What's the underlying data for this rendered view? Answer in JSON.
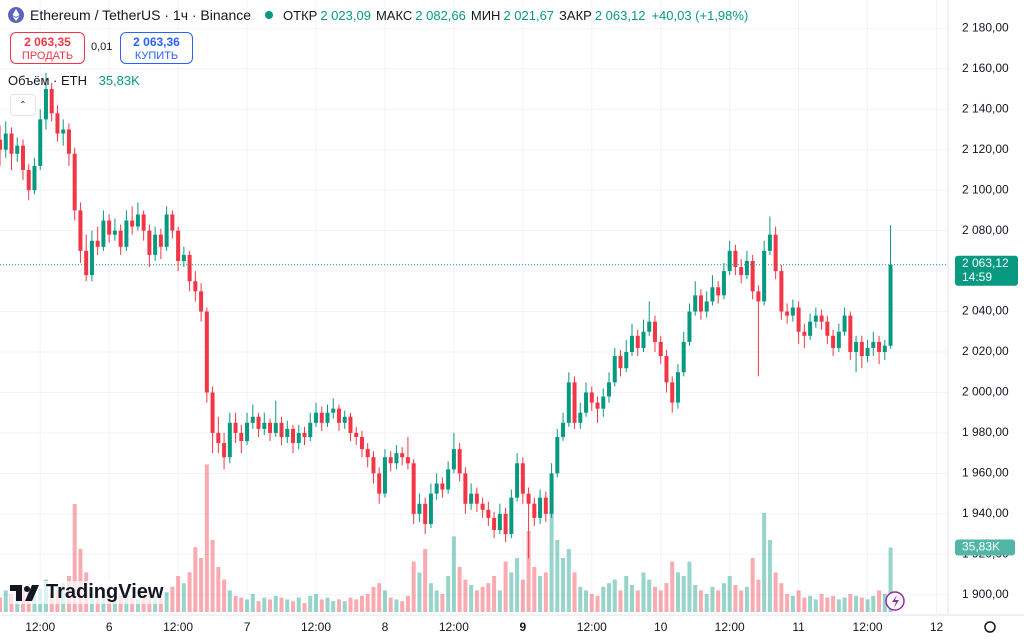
{
  "chart_data": {
    "type": "candlestick",
    "title": "Ethereum / TetherUS · 1ч · Binance",
    "ohlc_header": [
      {
        "label": "ОТКР",
        "value": "2 023,09"
      },
      {
        "label": "МАКС",
        "value": "2 082,66"
      },
      {
        "label": "МИН",
        "value": "2 021,67"
      },
      {
        "label": "ЗАКР",
        "value": "2 063,12"
      }
    ],
    "change": "+40,03 (+1,98%)",
    "sell": {
      "price": "2 063,35",
      "label": "ПРОДАТЬ"
    },
    "spread": "0,01",
    "buy": {
      "price": "2 063,36",
      "label": "КУПИТЬ"
    },
    "volume_title": "Объём · ETH",
    "volume_last_label": "35,83K",
    "last_price_label": "2 063,12",
    "countdown": "14:59",
    "logo": "TradingView",
    "up_color": "#089981",
    "down_color": "#f23645",
    "grid": true,
    "ylim": [
      1890,
      2194
    ],
    "yticks": [
      {
        "value": 1900,
        "label": "1 900,00"
      },
      {
        "value": 1920,
        "label": "1 920,00"
      },
      {
        "value": 1940,
        "label": "1 940,00"
      },
      {
        "value": 1960,
        "label": "1 960,00"
      },
      {
        "value": 1980,
        "label": "1 980,00"
      },
      {
        "value": 2000,
        "label": "2 000,00"
      },
      {
        "value": 2020,
        "label": "2 020,00"
      },
      {
        "value": 2040,
        "label": "2 040,00"
      },
      {
        "value": 2060,
        "label": "2 060,00"
      },
      {
        "value": 2080,
        "label": "2 080,00"
      },
      {
        "value": 2100,
        "label": "2 100,00"
      },
      {
        "value": 2120,
        "label": "2 120,00"
      },
      {
        "value": 2140,
        "label": "2 140,00"
      },
      {
        "value": 2160,
        "label": "2 160,00"
      },
      {
        "value": 2180,
        "label": "2 180,00"
      }
    ],
    "xlim": [
      0,
      165
    ],
    "xticks": [
      {
        "value": 7,
        "label": "12:00"
      },
      {
        "value": 19,
        "label": "6"
      },
      {
        "value": 31,
        "label": "12:00"
      },
      {
        "value": 43,
        "label": "7"
      },
      {
        "value": 55,
        "label": "12:00"
      },
      {
        "value": 67,
        "label": "8"
      },
      {
        "value": 79,
        "label": "12:00"
      },
      {
        "value": 91,
        "label": "9"
      },
      {
        "value": 103,
        "label": "12:00"
      },
      {
        "value": 115,
        "label": "10"
      },
      {
        "value": 127,
        "label": "12:00"
      },
      {
        "value": 139,
        "label": "11"
      },
      {
        "value": 151,
        "label": "12:00"
      },
      {
        "value": 163,
        "label": "12"
      }
    ],
    "candles": [
      [
        2125,
        2132,
        2112,
        2120
      ],
      [
        2120,
        2134,
        2116,
        2128
      ],
      [
        2128,
        2131,
        2110,
        2118
      ],
      [
        2118,
        2126,
        2114,
        2122
      ],
      [
        2122,
        2125,
        2105,
        2110
      ],
      [
        2110,
        2113,
        2095,
        2100
      ],
      [
        2100,
        2116,
        2098,
        2112
      ],
      [
        2112,
        2140,
        2110,
        2135
      ],
      [
        2135,
        2158,
        2130,
        2150
      ],
      [
        2150,
        2153,
        2134,
        2138
      ],
      [
        2138,
        2142,
        2124,
        2128
      ],
      [
        2128,
        2135,
        2122,
        2130
      ],
      [
        2130,
        2133,
        2112,
        2118
      ],
      [
        2118,
        2121,
        2085,
        2090
      ],
      [
        2090,
        2094,
        2064,
        2070
      ],
      [
        2070,
        2078,
        2055,
        2058
      ],
      [
        2058,
        2080,
        2055,
        2075
      ],
      [
        2075,
        2082,
        2068,
        2072
      ],
      [
        2072,
        2090,
        2070,
        2085
      ],
      [
        2085,
        2088,
        2074,
        2078
      ],
      [
        2078,
        2086,
        2075,
        2080
      ],
      [
        2080,
        2083,
        2068,
        2072
      ],
      [
        2072,
        2090,
        2070,
        2085
      ],
      [
        2085,
        2092,
        2078,
        2082
      ],
      [
        2082,
        2094,
        2080,
        2088
      ],
      [
        2088,
        2090,
        2075,
        2080
      ],
      [
        2080,
        2083,
        2062,
        2068
      ],
      [
        2068,
        2082,
        2065,
        2078
      ],
      [
        2078,
        2081,
        2066,
        2072
      ],
      [
        2072,
        2092,
        2070,
        2088
      ],
      [
        2088,
        2090,
        2076,
        2080
      ],
      [
        2080,
        2082,
        2060,
        2065
      ],
      [
        2065,
        2072,
        2062,
        2068
      ],
      [
        2068,
        2070,
        2050,
        2055
      ],
      [
        2055,
        2060,
        2045,
        2050
      ],
      [
        2050,
        2054,
        2035,
        2040
      ],
      [
        2040,
        2042,
        1995,
        2000
      ],
      [
        2000,
        2003,
        1970,
        1980
      ],
      [
        1980,
        1988,
        1970,
        1975
      ],
      [
        1975,
        1980,
        1962,
        1968
      ],
      [
        1968,
        1990,
        1965,
        1985
      ],
      [
        1985,
        1990,
        1975,
        1980
      ],
      [
        1980,
        1984,
        1970,
        1976
      ],
      [
        1976,
        1990,
        1974,
        1985
      ],
      [
        1985,
        1994,
        1982,
        1988
      ],
      [
        1988,
        1990,
        1978,
        1982
      ],
      [
        1982,
        1990,
        1979,
        1985
      ],
      [
        1985,
        1987,
        1976,
        1980
      ],
      [
        1980,
        1996,
        1978,
        1985
      ],
      [
        1985,
        1988,
        1974,
        1978
      ],
      [
        1978,
        1986,
        1975,
        1982
      ],
      [
        1982,
        1984,
        1970,
        1975
      ],
      [
        1975,
        1984,
        1972,
        1980
      ],
      [
        1980,
        1983,
        1974,
        1978
      ],
      [
        1978,
        1990,
        1976,
        1985
      ],
      [
        1985,
        1995,
        1983,
        1990
      ],
      [
        1990,
        1993,
        1981,
        1985
      ],
      [
        1985,
        1994,
        1983,
        1990
      ],
      [
        1990,
        1997,
        1987,
        1992
      ],
      [
        1992,
        1994,
        1981,
        1985
      ],
      [
        1985,
        1991,
        1982,
        1988
      ],
      [
        1988,
        1990,
        1976,
        1980
      ],
      [
        1980,
        1983,
        1974,
        1978
      ],
      [
        1978,
        1981,
        1968,
        1972
      ],
      [
        1972,
        1975,
        1963,
        1968
      ],
      [
        1968,
        1971,
        1955,
        1960
      ],
      [
        1960,
        1963,
        1945,
        1950
      ],
      [
        1950,
        1972,
        1948,
        1968
      ],
      [
        1968,
        1971,
        1961,
        1965
      ],
      [
        1965,
        1974,
        1962,
        1970
      ],
      [
        1970,
        1973,
        1964,
        1968
      ],
      [
        1968,
        1978,
        1962,
        1965
      ],
      [
        1965,
        1967,
        1935,
        1940
      ],
      [
        1940,
        1950,
        1936,
        1945
      ],
      [
        1945,
        1948,
        1930,
        1935
      ],
      [
        1935,
        1955,
        1933,
        1950
      ],
      [
        1950,
        1960,
        1947,
        1955
      ],
      [
        1955,
        1958,
        1948,
        1952
      ],
      [
        1952,
        1966,
        1950,
        1962
      ],
      [
        1962,
        1980,
        1960,
        1972
      ],
      [
        1972,
        1975,
        1956,
        1960
      ],
      [
        1960,
        1963,
        1940,
        1945
      ],
      [
        1945,
        1955,
        1942,
        1950
      ],
      [
        1950,
        1953,
        1941,
        1945
      ],
      [
        1945,
        1948,
        1938,
        1942
      ],
      [
        1942,
        1946,
        1934,
        1938
      ],
      [
        1938,
        1941,
        1928,
        1932
      ],
      [
        1932,
        1945,
        1930,
        1940
      ],
      [
        1940,
        1943,
        1926,
        1930
      ],
      [
        1930,
        1952,
        1928,
        1948
      ],
      [
        1948,
        1970,
        1946,
        1965
      ],
      [
        1965,
        1968,
        1945,
        1950
      ],
      [
        1950,
        1953,
        1918,
        1945
      ],
      [
        1945,
        1948,
        1934,
        1938
      ],
      [
        1938,
        1952,
        1935,
        1948
      ],
      [
        1948,
        1951,
        1936,
        1940
      ],
      [
        1940,
        1965,
        1938,
        1960
      ],
      [
        1960,
        1982,
        1958,
        1978
      ],
      [
        1978,
        1990,
        1976,
        1985
      ],
      [
        1985,
        2010,
        1983,
        2005
      ],
      [
        2005,
        2008,
        1982,
        1985
      ],
      [
        1985,
        1995,
        1982,
        1990
      ],
      [
        1990,
        2005,
        1988,
        2000
      ],
      [
        2000,
        2003,
        1991,
        1995
      ],
      [
        1995,
        1998,
        1985,
        1992
      ],
      [
        1992,
        2002,
        1988,
        1998
      ],
      [
        1998,
        2010,
        1995,
        2005
      ],
      [
        2005,
        2022,
        2003,
        2018
      ],
      [
        2018,
        2021,
        2008,
        2012
      ],
      [
        2012,
        2026,
        2010,
        2020
      ],
      [
        2020,
        2034,
        2018,
        2028
      ],
      [
        2028,
        2031,
        2018,
        2022
      ],
      [
        2022,
        2036,
        2020,
        2030
      ],
      [
        2030,
        2045,
        2028,
        2035
      ],
      [
        2035,
        2038,
        2020,
        2025
      ],
      [
        2025,
        2028,
        2014,
        2018
      ],
      [
        2018,
        2021,
        2000,
        2005
      ],
      [
        2005,
        2008,
        1990,
        1995
      ],
      [
        1995,
        2014,
        1992,
        2010
      ],
      [
        2010,
        2030,
        2008,
        2025
      ],
      [
        2025,
        2044,
        2023,
        2040
      ],
      [
        2040,
        2055,
        2038,
        2048
      ],
      [
        2048,
        2051,
        2036,
        2040
      ],
      [
        2040,
        2050,
        2037,
        2045
      ],
      [
        2045,
        2058,
        2043,
        2052
      ],
      [
        2052,
        2055,
        2044,
        2048
      ],
      [
        2048,
        2064,
        2046,
        2060
      ],
      [
        2060,
        2075,
        2058,
        2070
      ],
      [
        2070,
        2073,
        2058,
        2062
      ],
      [
        2062,
        2066,
        2054,
        2058
      ],
      [
        2058,
        2070,
        2056,
        2065
      ],
      [
        2065,
        2068,
        2046,
        2050
      ],
      [
        2050,
        2053,
        2008,
        2045
      ],
      [
        2045,
        2075,
        2043,
        2070
      ],
      [
        2070,
        2087,
        2068,
        2078
      ],
      [
        2078,
        2082,
        2056,
        2060
      ],
      [
        2060,
        2063,
        2036,
        2040
      ],
      [
        2040,
        2044,
        2034,
        2038
      ],
      [
        2038,
        2046,
        2035,
        2042
      ],
      [
        2042,
        2045,
        2024,
        2030
      ],
      [
        2030,
        2034,
        2022,
        2028
      ],
      [
        2028,
        2039,
        2026,
        2035
      ],
      [
        2035,
        2042,
        2032,
        2038
      ],
      [
        2038,
        2041,
        2031,
        2035
      ],
      [
        2035,
        2038,
        2024,
        2028
      ],
      [
        2028,
        2031,
        2018,
        2022
      ],
      [
        2022,
        2034,
        2020,
        2030
      ],
      [
        2030,
        2042,
        2028,
        2038
      ],
      [
        2038,
        2040,
        2016,
        2020
      ],
      [
        2020,
        2028,
        2010,
        2025
      ],
      [
        2025,
        2028,
        2012,
        2018
      ],
      [
        2018,
        2026,
        2015,
        2022
      ],
      [
        2022,
        2030,
        2018,
        2025
      ],
      [
        2025,
        2028,
        2014,
        2020
      ],
      [
        2020,
        2026,
        2016,
        2023.09
      ],
      [
        2023.09,
        2082.66,
        2021.67,
        2063.12
      ]
    ],
    "volumes": [
      8,
      12,
      10,
      9,
      14,
      11,
      9,
      13,
      18,
      10,
      12,
      16,
      20,
      60,
      35,
      22,
      14,
      10,
      9,
      8,
      7,
      9,
      11,
      8,
      7,
      10,
      12,
      9,
      8,
      11,
      14,
      20,
      16,
      22,
      36,
      30,
      82,
      40,
      25,
      18,
      12,
      9,
      8,
      7,
      10,
      6,
      8,
      7,
      9,
      8,
      7,
      6,
      8,
      5,
      9,
      10,
      7,
      8,
      6,
      7,
      6,
      8,
      7,
      9,
      10,
      14,
      16,
      12,
      8,
      7,
      6,
      9,
      28,
      22,
      35,
      16,
      12,
      10,
      20,
      42,
      25,
      18,
      15,
      12,
      14,
      16,
      20,
      12,
      28,
      22,
      30,
      18,
      45,
      25,
      20,
      22,
      55,
      40,
      30,
      35,
      22,
      14,
      12,
      10,
      9,
      14,
      16,
      18,
      12,
      20,
      15,
      12,
      22,
      18,
      14,
      12,
      16,
      28,
      22,
      20,
      28,
      15,
      12,
      10,
      14,
      12,
      16,
      20,
      15,
      12,
      14,
      30,
      18,
      55,
      40,
      22,
      16,
      10,
      9,
      12,
      8,
      9,
      7,
      10,
      8,
      9,
      7,
      8,
      10,
      9,
      8,
      7,
      9,
      12,
      10,
      35.83
    ]
  }
}
